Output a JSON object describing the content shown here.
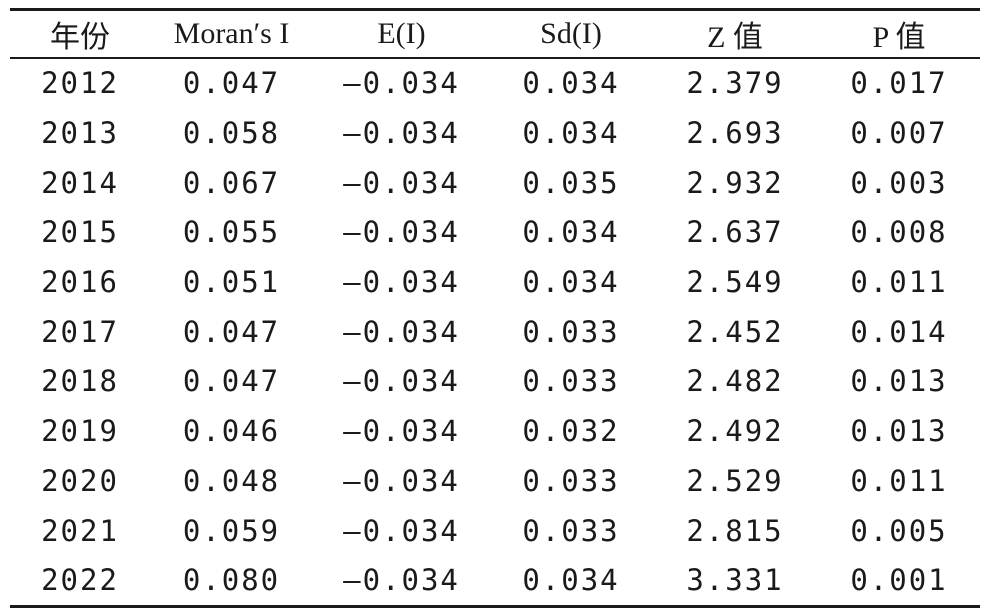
{
  "table": {
    "headers": [
      "年份",
      "Moran′s I",
      "E(I)",
      "Sd(I)",
      "Z 值",
      "P 值"
    ],
    "rows": [
      [
        "2012",
        "0.047",
        "—0.034",
        "0.034",
        "2.379",
        "0.017"
      ],
      [
        "2013",
        "0.058",
        "—0.034",
        "0.034",
        "2.693",
        "0.007"
      ],
      [
        "2014",
        "0.067",
        "—0.034",
        "0.035",
        "2.932",
        "0.003"
      ],
      [
        "2015",
        "0.055",
        "—0.034",
        "0.034",
        "2.637",
        "0.008"
      ],
      [
        "2016",
        "0.051",
        "—0.034",
        "0.034",
        "2.549",
        "0.011"
      ],
      [
        "2017",
        "0.047",
        "—0.034",
        "0.033",
        "2.452",
        "0.014"
      ],
      [
        "2018",
        "0.047",
        "—0.034",
        "0.033",
        "2.482",
        "0.013"
      ],
      [
        "2019",
        "0.046",
        "—0.034",
        "0.032",
        "2.492",
        "0.013"
      ],
      [
        "2020",
        "0.048",
        "—0.034",
        "0.033",
        "2.529",
        "0.011"
      ],
      [
        "2021",
        "0.059",
        "—0.034",
        "0.033",
        "2.815",
        "0.005"
      ],
      [
        "2022",
        "0.080",
        "—0.034",
        "0.034",
        "3.331",
        "0.001"
      ]
    ]
  }
}
